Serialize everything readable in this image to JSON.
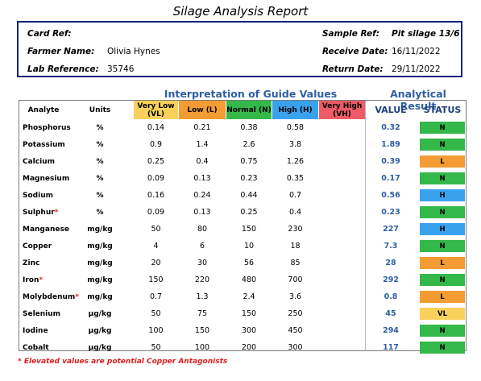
{
  "report": {
    "title": "Silage Analysis Report"
  },
  "card": {
    "card_ref_label": "Card Ref:",
    "card_ref_value": "",
    "farmer_label": "Farmer Name:",
    "farmer_value": "Olivia Hynes",
    "lab_label": "Lab Reference:",
    "lab_value": "35746",
    "sample_label": "Sample Ref:",
    "sample_value": "Pit silage 13/6",
    "receive_label": "Receive Date:",
    "receive_value": "16/11/2022",
    "return_label": "Return Date:",
    "return_value": "29/11/2022"
  },
  "section": {
    "interpretation": "Interpretation of Guide Values",
    "analytical": "Analytical Result"
  },
  "headers": {
    "analyte": "Analyte",
    "units": "Units",
    "vl": "Very Low (VL)",
    "l": "Low (L)",
    "n": "Normal (N)",
    "h": "High (H)",
    "vh": "Very High (VH)",
    "value": "VALUE",
    "status": "STATUS"
  },
  "colors": {
    "vl": "#fbd05a",
    "l": "#f39c34",
    "n": "#34b84a",
    "h": "#3aa1ee",
    "vh": "#ee5b66",
    "accent": "#2e5fa5",
    "asterisk": "#e02020"
  },
  "rows": [
    {
      "analyte": "Phosphorus",
      "star": "",
      "units": "%",
      "vl": "0.14",
      "l": "0.21",
      "n": "0.38",
      "h": "0.58",
      "value": "0.32",
      "status": "N"
    },
    {
      "analyte": "Potassium",
      "star": "",
      "units": "%",
      "vl": "0.9",
      "l": "1.4",
      "n": "2.6",
      "h": "3.8",
      "value": "1.89",
      "status": "N"
    },
    {
      "analyte": "Calcium",
      "star": "",
      "units": "%",
      "vl": "0.25",
      "l": "0.4",
      "n": "0.75",
      "h": "1.26",
      "value": "0.39",
      "status": "L"
    },
    {
      "analyte": "Magnesium",
      "star": "",
      "units": "%",
      "vl": "0.09",
      "l": "0.13",
      "n": "0.23",
      "h": "0.35",
      "value": "0.17",
      "status": "N"
    },
    {
      "analyte": "Sodium",
      "star": "",
      "units": "%",
      "vl": "0.16",
      "l": "0.24",
      "n": "0.44",
      "h": "0.7",
      "value": "0.56",
      "status": "H"
    },
    {
      "analyte": "Sulphur",
      "star": "*",
      "units": "%",
      "vl": "0.09",
      "l": "0.13",
      "n": "0.25",
      "h": "0.4",
      "value": "0.23",
      "status": "N"
    },
    {
      "analyte": "Manganese",
      "star": "",
      "units": "mg/kg",
      "vl": "50",
      "l": "80",
      "n": "150",
      "h": "230",
      "value": "227",
      "status": "H"
    },
    {
      "analyte": "Copper",
      "star": "",
      "units": "mg/kg",
      "vl": "4",
      "l": "6",
      "n": "10",
      "h": "18",
      "value": "7.3",
      "status": "N"
    },
    {
      "analyte": "Zinc",
      "star": "",
      "units": "mg/kg",
      "vl": "20",
      "l": "30",
      "n": "56",
      "h": "85",
      "value": "28",
      "status": "L"
    },
    {
      "analyte": "Iron",
      "star": "*",
      "units": "mg/kg",
      "vl": "150",
      "l": "220",
      "n": "480",
      "h": "700",
      "value": "292",
      "status": "N"
    },
    {
      "analyte": "Molybdenum",
      "star": "*",
      "units": "mg/kg",
      "vl": "0.7",
      "l": "1.3",
      "n": "2.4",
      "h": "3.6",
      "value": "0.8",
      "status": "L"
    },
    {
      "analyte": "Selenium",
      "star": "",
      "units": "µg/kg",
      "vl": "50",
      "l": "75",
      "n": "150",
      "h": "250",
      "value": "45",
      "status": "VL"
    },
    {
      "analyte": "Iodine",
      "star": "",
      "units": "µg/kg",
      "vl": "100",
      "l": "150",
      "n": "300",
      "h": "450",
      "value": "294",
      "status": "N"
    },
    {
      "analyte": "Cobalt",
      "star": "",
      "units": "µg/kg",
      "vl": "50",
      "l": "100",
      "n": "200",
      "h": "300",
      "value": "117",
      "status": "N"
    }
  ],
  "footnote": "* Elevated values are potential Copper Antagonists"
}
